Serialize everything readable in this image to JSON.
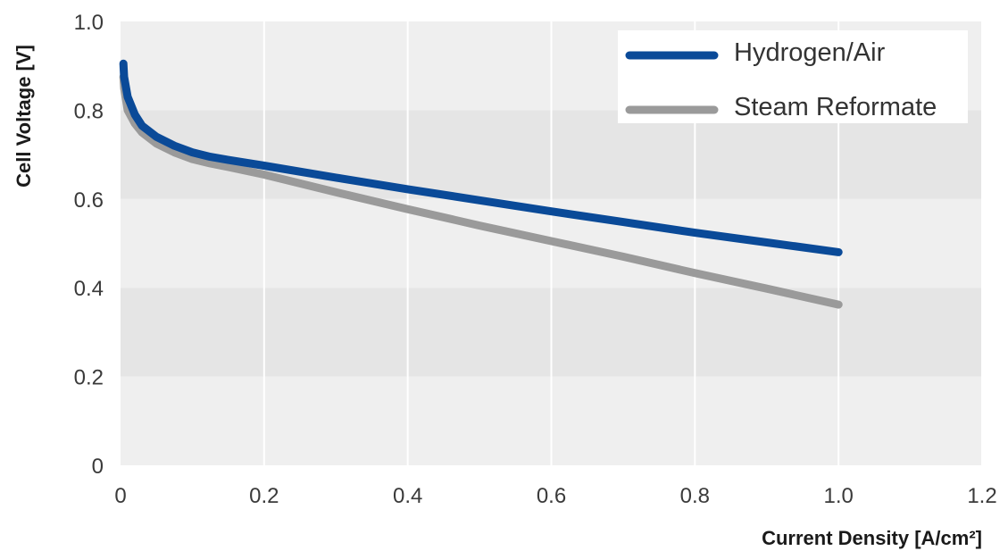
{
  "chart_data": {
    "type": "line",
    "title": "",
    "xlabel": "Current Density [A/cm²]",
    "ylabel": "Cell Voltage [V]",
    "xlim": [
      0,
      1.2
    ],
    "ylim": [
      0,
      1.0
    ],
    "x_ticks": [
      "0",
      "0.2",
      "0.4",
      "0.6",
      "0.8",
      "1.0",
      "1.2"
    ],
    "y_ticks": [
      "0",
      "0.2",
      "0.4",
      "0.6",
      "0.8",
      "1.0"
    ],
    "x_tick_values": [
      0,
      0.2,
      0.4,
      0.6,
      0.8,
      1.0,
      1.2
    ],
    "y_tick_values": [
      0,
      0.2,
      0.4,
      0.6,
      0.8,
      1.0
    ],
    "grid": true,
    "legend_position": "top-right",
    "series": [
      {
        "name": "Hydrogen/Air",
        "color": "#0a4a98",
        "x": [
          0.004,
          0.005,
          0.01,
          0.02,
          0.03,
          0.05,
          0.075,
          0.1,
          0.125,
          0.15,
          0.2,
          0.3,
          0.4,
          0.5,
          0.6,
          0.7,
          0.8,
          0.9,
          1.0
        ],
        "y": [
          0.905,
          0.875,
          0.83,
          0.79,
          0.765,
          0.74,
          0.72,
          0.705,
          0.695,
          0.688,
          0.675,
          0.648,
          0.622,
          0.597,
          0.572,
          0.548,
          0.524,
          0.502,
          0.48
        ]
      },
      {
        "name": "Steam Reformate",
        "color": "#9a9a9a",
        "x": [
          0.004,
          0.005,
          0.01,
          0.02,
          0.03,
          0.05,
          0.075,
          0.1,
          0.125,
          0.15,
          0.2,
          0.3,
          0.4,
          0.5,
          0.6,
          0.7,
          0.8,
          0.9,
          1.0
        ],
        "y": [
          0.875,
          0.85,
          0.8,
          0.77,
          0.75,
          0.725,
          0.705,
          0.69,
          0.68,
          0.672,
          0.655,
          0.615,
          0.577,
          0.54,
          0.505,
          0.47,
          0.433,
          0.398,
          0.362
        ]
      }
    ]
  }
}
